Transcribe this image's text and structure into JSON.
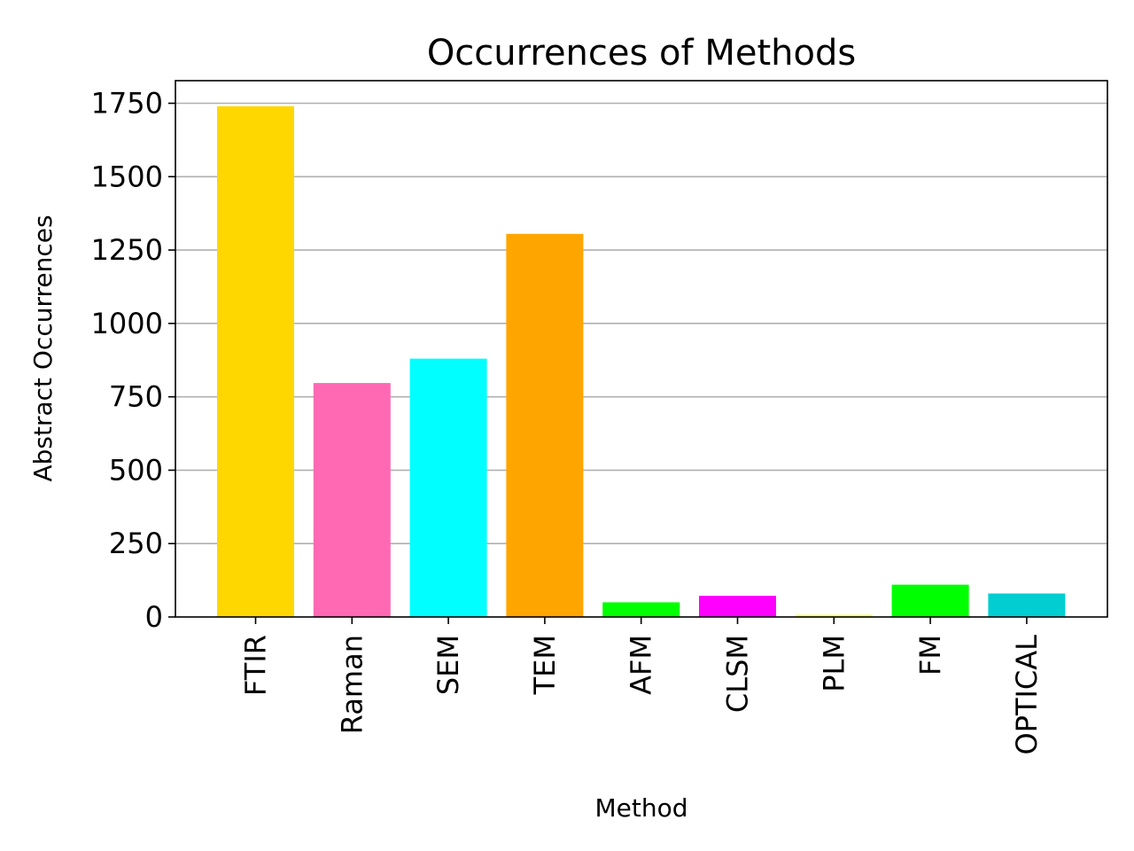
{
  "chart_data": {
    "type": "bar",
    "title": "Occurrences of Methods",
    "xlabel": "Method",
    "ylabel": "Abstract Occurrences",
    "categories": [
      "FTIR",
      "Raman",
      "SEM",
      "TEM",
      "AFM",
      "CLSM",
      "PLM",
      "FM",
      "OPTICAL"
    ],
    "values": [
      1740,
      797,
      880,
      1305,
      50,
      72,
      8,
      110,
      80
    ],
    "colors": [
      "#FFD700",
      "#FF69B4",
      "#00FFFF",
      "#FFA500",
      "#00FF00",
      "#FF00FF",
      "#FFFF66",
      "#00FF00",
      "#00CED1"
    ],
    "ylim": [
      0,
      1827
    ],
    "yticks": [
      0,
      250,
      500,
      750,
      1000,
      1250,
      1500,
      1750
    ],
    "grid": "horizontal",
    "legend": "none"
  }
}
